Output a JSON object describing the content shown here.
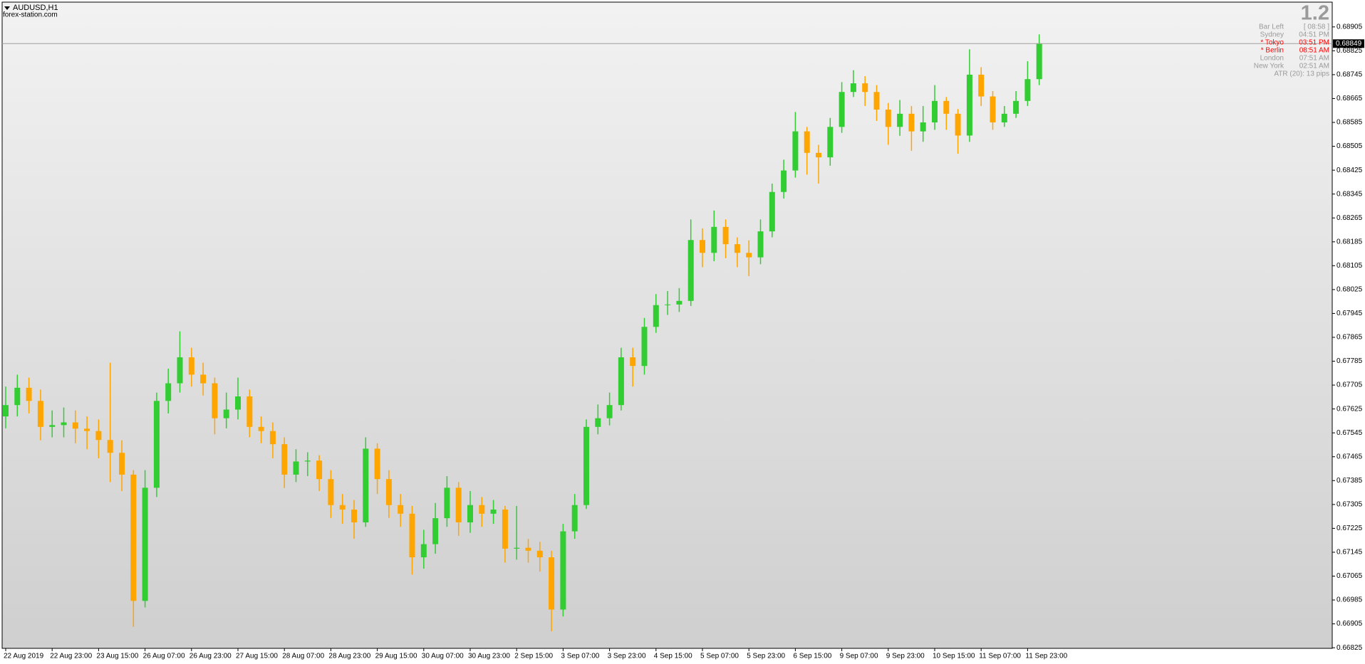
{
  "chart_data": {
    "type": "candlestick",
    "symbol": "AUDUSD,H1",
    "watermark": "forex-station.com",
    "up_color": "#32cd32",
    "down_color": "#ffa500",
    "categories": [
      "22 Aug 2019",
      null,
      null,
      null,
      "22 Aug 23:00",
      null,
      null,
      null,
      "23 Aug 15:00",
      null,
      null,
      null,
      "26 Aug 07:00",
      null,
      null,
      null,
      "26 Aug 23:00",
      null,
      null,
      null,
      "27 Aug 15:00",
      null,
      null,
      null,
      "28 Aug 07:00",
      null,
      null,
      null,
      "28 Aug 23:00",
      null,
      null,
      null,
      "29 Aug 15:00",
      null,
      null,
      null,
      "30 Aug 07:00",
      null,
      null,
      null,
      "30 Aug 23:00",
      null,
      null,
      null,
      "2 Sep 15:00",
      null,
      null,
      null,
      "3 Sep 07:00",
      null,
      null,
      null,
      "3 Sep 23:00",
      null,
      null,
      null,
      "4 Sep 15:00",
      null,
      null,
      null,
      "5 Sep 07:00",
      null,
      null,
      null,
      "5 Sep 23:00",
      null,
      null,
      null,
      "6 Sep 15:00",
      null,
      null,
      null,
      "9 Sep 07:00",
      null,
      null,
      null,
      "9 Sep 23:00",
      null,
      null,
      null,
      "10 Sep 15:00",
      null,
      null,
      null,
      "11 Sep 07:00",
      null,
      null,
      null,
      "11 Sep 23:00",
      null
    ],
    "open": [
      0.676,
      0.67638,
      0.67696,
      0.67652,
      0.67565,
      0.67571,
      0.6758,
      0.67559,
      0.67551,
      0.67521,
      0.67478,
      0.67405,
      0.66982,
      0.67361,
      0.67652,
      0.67711,
      0.67798,
      0.6774,
      0.67711,
      0.67594,
      0.67623,
      0.67667,
      0.67565,
      0.67551,
      0.67507,
      0.67405,
      0.67449,
      0.67452,
      0.6739,
      0.67303,
      0.67288,
      0.67245,
      0.67492,
      0.6739,
      0.67303,
      0.67274,
      0.67128,
      0.67172,
      0.67259,
      0.67361,
      0.67245,
      0.67303,
      0.67274,
      0.67288,
      0.67157,
      0.6716,
      0.6715,
      0.67128,
      0.66953,
      0.67215,
      0.67303,
      0.67565,
      0.67594,
      0.67638,
      0.67798,
      0.67769,
      0.679,
      0.67973,
      0.67975,
      0.67987,
      0.68191,
      0.68148,
      0.68235,
      0.68177,
      0.68148,
      0.68133,
      0.6822,
      0.68352,
      0.68424,
      0.68555,
      0.68483,
      0.68468,
      0.6857,
      0.68687,
      0.68716,
      0.68687,
      0.68628,
      0.6857,
      0.68614,
      0.68555,
      0.68585,
      0.68657,
      0.68614,
      0.68541,
      0.68745,
      0.68672,
      0.68585,
      0.68614,
      0.68657,
      0.6873
    ],
    "high": [
      0.677,
      0.6774,
      0.6773,
      0.6769,
      0.6762,
      0.6763,
      0.6762,
      0.676,
      0.6759,
      0.6778,
      0.6752,
      0.6742,
      0.6742,
      0.6768,
      0.6776,
      0.67885,
      0.6783,
      0.6778,
      0.6773,
      0.6768,
      0.6773,
      0.6769,
      0.676,
      0.6758,
      0.6753,
      0.6749,
      0.6748,
      0.6747,
      0.6742,
      0.6734,
      0.6732,
      0.6753,
      0.6751,
      0.6742,
      0.6734,
      0.673,
      0.6722,
      0.6731,
      0.674,
      0.6738,
      0.6735,
      0.6733,
      0.6732,
      0.673,
      0.673,
      0.6719,
      0.6718,
      0.6715,
      0.6724,
      0.6734,
      0.6759,
      0.6764,
      0.6768,
      0.6783,
      0.6783,
      0.6793,
      0.6801,
      0.6802,
      0.6803,
      0.6826,
      0.6823,
      0.6829,
      0.6826,
      0.682,
      0.6819,
      0.6826,
      0.6838,
      0.6846,
      0.6862,
      0.6857,
      0.6851,
      0.686,
      0.6872,
      0.6876,
      0.6874,
      0.6871,
      0.6865,
      0.6866,
      0.6864,
      0.6864,
      0.6871,
      0.6867,
      0.6863,
      0.6883,
      0.6877,
      0.6869,
      0.6864,
      0.6869,
      0.6879,
      0.6888
    ],
    "low": [
      0.6756,
      0.676,
      0.6761,
      0.6752,
      0.6753,
      0.6753,
      0.6751,
      0.6749,
      0.6746,
      0.6738,
      0.6735,
      0.66895,
      0.6696,
      0.6733,
      0.6761,
      0.6768,
      0.677,
      0.6767,
      0.6754,
      0.6756,
      0.6759,
      0.6753,
      0.6751,
      0.6746,
      0.6736,
      0.6738,
      0.674,
      0.6735,
      0.6726,
      0.6724,
      0.6719,
      0.6723,
      0.6734,
      0.6726,
      0.6723,
      0.6707,
      0.6709,
      0.6714,
      0.6723,
      0.672,
      0.6721,
      0.6723,
      0.6724,
      0.6711,
      0.6712,
      0.6711,
      0.6708,
      0.6688,
      0.6693,
      0.6719,
      0.6729,
      0.6754,
      0.6757,
      0.6762,
      0.677,
      0.6774,
      0.6788,
      0.6794,
      0.6795,
      0.6797,
      0.681,
      0.6812,
      0.6813,
      0.681,
      0.6807,
      0.6811,
      0.682,
      0.6833,
      0.684,
      0.6841,
      0.6838,
      0.6844,
      0.6855,
      0.6867,
      0.6864,
      0.6859,
      0.6851,
      0.6854,
      0.6849,
      0.6852,
      0.6856,
      0.6856,
      0.6848,
      0.6852,
      0.6864,
      0.6856,
      0.6857,
      0.686,
      0.6864,
      0.6871
    ],
    "close": [
      0.67638,
      0.67696,
      0.67652,
      0.67565,
      0.67571,
      0.6758,
      0.67559,
      0.67551,
      0.67521,
      0.67478,
      0.67405,
      0.66982,
      0.67361,
      0.67652,
      0.67711,
      0.67798,
      0.6774,
      0.67711,
      0.67594,
      0.67623,
      0.67667,
      0.67565,
      0.67551,
      0.67507,
      0.67405,
      0.67449,
      0.67452,
      0.6739,
      0.67303,
      0.67288,
      0.67245,
      0.67492,
      0.6739,
      0.67303,
      0.67274,
      0.67128,
      0.67172,
      0.67259,
      0.67361,
      0.67245,
      0.67303,
      0.67274,
      0.67288,
      0.67157,
      0.6716,
      0.6715,
      0.67128,
      0.66953,
      0.67215,
      0.67303,
      0.67565,
      0.67594,
      0.67638,
      0.67798,
      0.67769,
      0.679,
      0.67973,
      0.67975,
      0.67987,
      0.68191,
      0.68148,
      0.68235,
      0.68177,
      0.68148,
      0.68133,
      0.6822,
      0.68352,
      0.68424,
      0.68555,
      0.68483,
      0.68468,
      0.6857,
      0.68687,
      0.68716,
      0.68687,
      0.68628,
      0.6857,
      0.68614,
      0.68555,
      0.68585,
      0.68657,
      0.68614,
      0.68541,
      0.68745,
      0.68672,
      0.68585,
      0.68614,
      0.68657,
      0.6873,
      0.68849
    ],
    "current_price": 0.68849,
    "ylim": [
      0.66823,
      0.68988
    ],
    "yticks": [
      0.68905,
      0.68825,
      0.68745,
      0.68665,
      0.68585,
      0.68505,
      0.68425,
      0.68345,
      0.68265,
      0.68185,
      0.68105,
      0.68025,
      0.67945,
      0.67865,
      0.67785,
      0.67705,
      0.67625,
      0.67545,
      0.67465,
      0.67385,
      0.67305,
      0.67225,
      0.67145,
      0.67065,
      0.66985,
      0.66905,
      0.66825
    ],
    "info": {
      "version": "1.2",
      "rows": [
        {
          "label": "Bar Left",
          "value": "[ 08:58 ]",
          "highlight": false
        },
        {
          "label": "Sydney",
          "value": "04:51 PM",
          "highlight": false
        },
        {
          "label": "* Tokyo",
          "value": "03:51 PM",
          "highlight": true
        },
        {
          "label": "* Berlin",
          "value": "08:51 AM",
          "highlight": true
        },
        {
          "label": "London",
          "value": "07:51 AM",
          "highlight": false
        },
        {
          "label": "New York",
          "value": "02:51 AM",
          "highlight": false
        }
      ],
      "atr": "ATR (20): 13 pips"
    }
  }
}
